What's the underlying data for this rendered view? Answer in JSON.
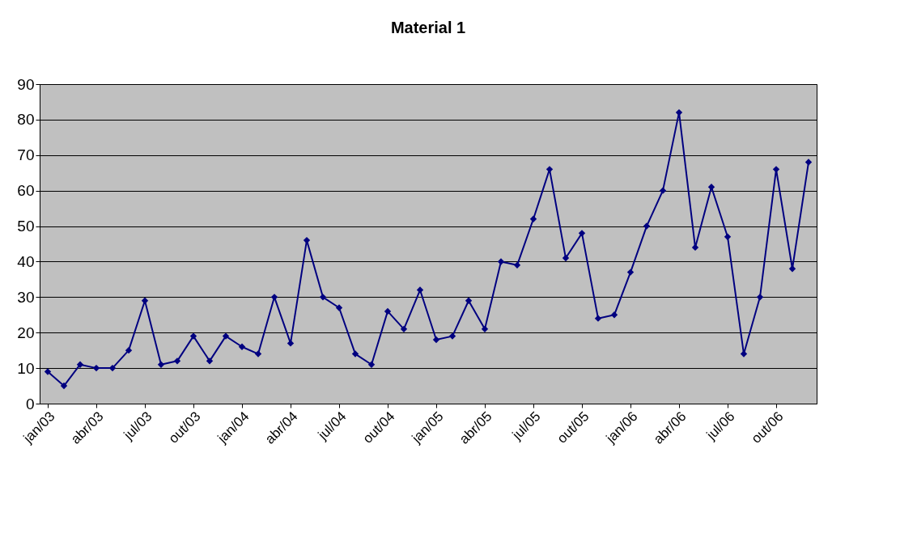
{
  "chart_data": {
    "type": "line",
    "title": "Material 1",
    "categories": [
      "jan/03",
      null,
      null,
      "abr/03",
      null,
      null,
      "jul/03",
      null,
      null,
      "out/03",
      null,
      null,
      "jan/04",
      null,
      null,
      "abr/04",
      null,
      null,
      "jul/04",
      null,
      null,
      "out/04",
      null,
      null,
      "jan/05",
      null,
      null,
      "abr/05",
      null,
      null,
      "jul/05",
      null,
      null,
      "out/05",
      null,
      null,
      "jan/06",
      null,
      null,
      "abr/06",
      null,
      null,
      "jul/06",
      null,
      null,
      "out/06",
      null,
      null
    ],
    "series": [
      {
        "color": "#000080",
        "values": [
          9,
          5,
          11,
          10,
          10,
          15,
          29,
          11,
          12,
          19,
          12,
          19,
          16,
          14,
          30,
          17,
          46,
          30,
          27,
          14,
          11,
          26,
          21,
          32,
          18,
          19,
          29,
          21,
          40,
          39,
          52,
          66,
          41,
          48,
          24,
          25,
          37,
          50,
          60,
          82,
          44,
          61,
          47,
          14,
          30,
          66,
          38,
          68
        ]
      }
    ],
    "ylim": [
      0,
      90
    ],
    "yticks": [
      0,
      10,
      20,
      30,
      40,
      50,
      60,
      70,
      80,
      90
    ],
    "grid": "y",
    "marker": "diamond",
    "line_style": "solid"
  }
}
